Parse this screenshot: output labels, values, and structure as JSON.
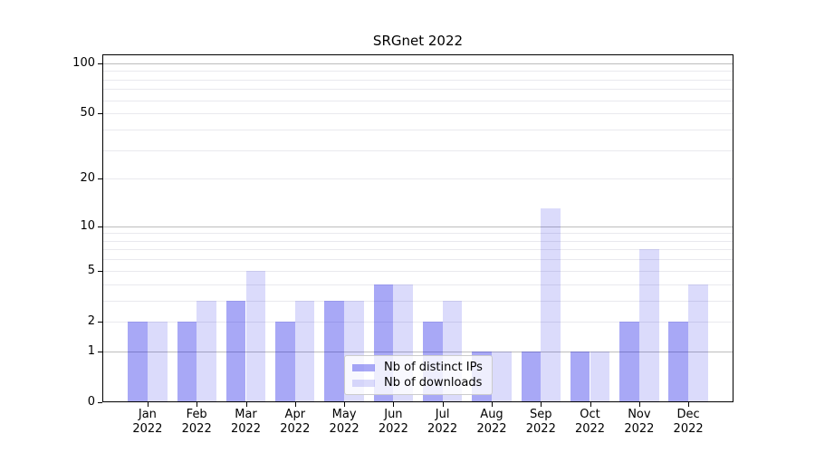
{
  "chart_data": {
    "type": "bar",
    "title": "SRGnet 2022",
    "categories": [
      "Jan",
      "Feb",
      "Mar",
      "Apr",
      "May",
      "Jun",
      "Jul",
      "Aug",
      "Sep",
      "Oct",
      "Nov",
      "Dec"
    ],
    "x_year": "2022",
    "series": [
      {
        "name": "Nb of distinct IPs",
        "color": "#a8a8f7",
        "fill": "rgba(0,0,230,0.34)",
        "values": [
          2,
          2,
          3,
          2,
          3,
          4,
          2,
          1,
          1,
          1,
          2,
          2
        ]
      },
      {
        "name": "Nb of downloads",
        "color": "#dbdbfb",
        "fill": "rgba(0,0,230,0.14)",
        "values": [
          2,
          3,
          5,
          3,
          3,
          4,
          3,
          1,
          13,
          1,
          7,
          4
        ]
      }
    ],
    "y_ticks": [
      0,
      1,
      2,
      5,
      10,
      20,
      50,
      100
    ],
    "y_scale": "log10(1+y)",
    "ylim": [
      0,
      113
    ],
    "xlabel": "",
    "ylabel": "",
    "grid": true,
    "legend_position": "lower center",
    "colors": {
      "decade_gridline": "#bdbdbd",
      "minor_gridline": "#e9e9ee",
      "axis": "#000000"
    }
  }
}
